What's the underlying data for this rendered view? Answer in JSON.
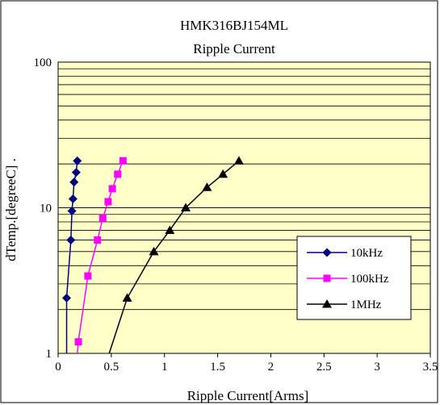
{
  "chart_data": {
    "type": "line",
    "title": "HMK316BJ154ML",
    "subtitle": "Ripple Current",
    "xlabel": "Ripple Current[Arms]",
    "ylabel": "dTemp.[degreeC] .",
    "xlim": [
      0,
      3.5
    ],
    "ylim": [
      1,
      100
    ],
    "y_scale": "log",
    "x_ticks": [
      0,
      0.5,
      1,
      1.5,
      2,
      2.5,
      3,
      3.5
    ],
    "x_tick_labels": [
      "0",
      "0.5",
      "1",
      "1.5",
      "2",
      "2.5",
      "3",
      "3.5"
    ],
    "y_tick_values": [
      1,
      10,
      100
    ],
    "y_tick_labels": [
      "1",
      "10",
      "100"
    ],
    "grid": true,
    "legend_position": "bottom-right",
    "plot_background": "#ffffc8",
    "series": [
      {
        "name": "10kHz",
        "color": "#000080",
        "marker": "diamond",
        "points": [
          [
            0.08,
            1.0
          ],
          [
            0.08,
            2.4
          ],
          [
            0.12,
            6.0
          ],
          [
            0.13,
            9.5
          ],
          [
            0.14,
            11.5
          ],
          [
            0.15,
            15.0
          ],
          [
            0.17,
            17.5
          ],
          [
            0.18,
            21.0
          ]
        ]
      },
      {
        "name": "100kHz",
        "color": "#ff00ff",
        "marker": "square",
        "points": [
          [
            0.18,
            1.0
          ],
          [
            0.19,
            1.2
          ],
          [
            0.28,
            3.4
          ],
          [
            0.37,
            6.0
          ],
          [
            0.42,
            8.5
          ],
          [
            0.47,
            11.0
          ],
          [
            0.51,
            13.5
          ],
          [
            0.56,
            17.0
          ],
          [
            0.61,
            21.0
          ]
        ]
      },
      {
        "name": "1MHz",
        "color": "#000000",
        "marker": "triangle",
        "points": [
          [
            0.48,
            1.0
          ],
          [
            0.65,
            2.4
          ],
          [
            0.9,
            5.0
          ],
          [
            1.05,
            7.0
          ],
          [
            1.2,
            10.0
          ],
          [
            1.4,
            13.8
          ],
          [
            1.55,
            17.0
          ],
          [
            1.7,
            21.0
          ]
        ]
      }
    ]
  }
}
